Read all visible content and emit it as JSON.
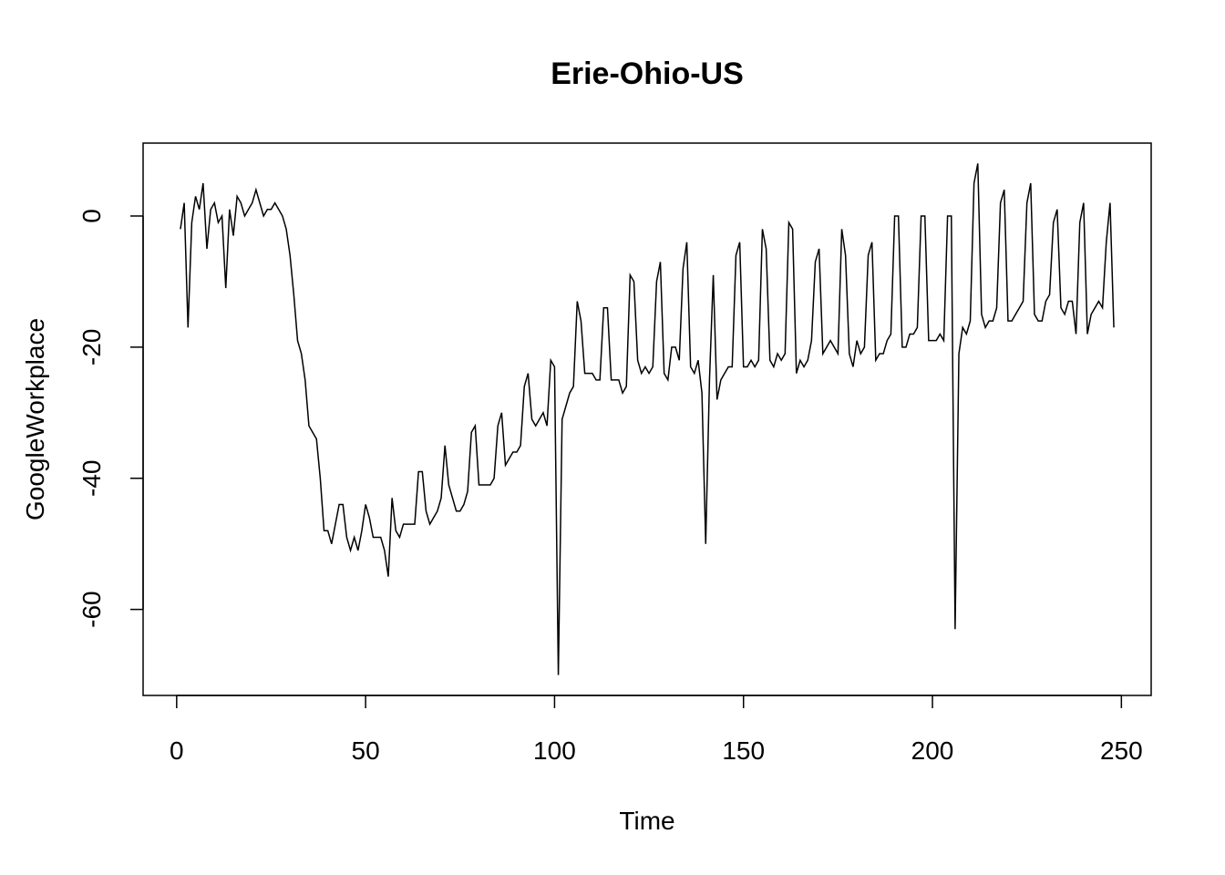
{
  "chart_data": {
    "type": "line",
    "title": "Erie-Ohio-US",
    "xlabel": "Time",
    "ylabel": "GoogleWorkplace",
    "color": "#000000",
    "x": [
      1,
      2,
      3,
      4,
      5,
      6,
      7,
      8,
      9,
      10,
      11,
      12,
      13,
      14,
      15,
      16,
      17,
      18,
      19,
      20,
      21,
      22,
      23,
      24,
      25,
      26,
      27,
      28,
      29,
      30,
      31,
      32,
      33,
      34,
      35,
      36,
      37,
      38,
      39,
      40,
      41,
      42,
      43,
      44,
      45,
      46,
      47,
      48,
      49,
      50,
      51,
      52,
      53,
      54,
      55,
      56,
      57,
      58,
      59,
      60,
      61,
      62,
      63,
      64,
      65,
      66,
      67,
      68,
      69,
      70,
      71,
      72,
      73,
      74,
      75,
      76,
      77,
      78,
      79,
      80,
      81,
      82,
      83,
      84,
      85,
      86,
      87,
      88,
      89,
      90,
      91,
      92,
      93,
      94,
      95,
      96,
      97,
      98,
      99,
      100,
      101,
      102,
      103,
      104,
      105,
      106,
      107,
      108,
      109,
      110,
      111,
      112,
      113,
      114,
      115,
      116,
      117,
      118,
      119,
      120,
      121,
      122,
      123,
      124,
      125,
      126,
      127,
      128,
      129,
      130,
      131,
      132,
      133,
      134,
      135,
      136,
      137,
      138,
      139,
      140,
      141,
      142,
      143,
      144,
      145,
      146,
      147,
      148,
      149,
      150,
      151,
      152,
      153,
      154,
      155,
      156,
      157,
      158,
      159,
      160,
      161,
      162,
      163,
      164,
      165,
      166,
      167,
      168,
      169,
      170,
      171,
      172,
      173,
      174,
      175,
      176,
      177,
      178,
      179,
      180,
      181,
      182,
      183,
      184,
      185,
      186,
      187,
      188,
      189,
      190,
      191,
      192,
      193,
      194,
      195,
      196,
      197,
      198,
      199,
      200,
      201,
      202,
      203,
      204,
      205,
      206,
      207,
      208,
      209,
      210,
      211,
      212,
      213,
      214,
      215,
      216,
      217,
      218,
      219,
      220,
      221,
      222,
      223,
      224,
      225,
      226,
      227,
      228,
      229,
      230,
      231,
      232,
      233,
      234,
      235,
      236,
      237,
      238,
      239,
      240,
      241,
      242,
      243,
      244,
      245,
      246,
      247,
      248
    ],
    "values": [
      -2,
      2,
      -17,
      -1,
      3,
      1,
      5,
      -5,
      1,
      2,
      -1,
      0,
      -11,
      1,
      -3,
      3,
      2,
      0,
      1,
      2,
      4,
      2,
      0,
      1,
      1,
      2,
      1,
      0,
      -2,
      -6,
      -12,
      -19,
      -21,
      -25,
      -32,
      -33,
      -34,
      -40,
      -48,
      -48,
      -50,
      -47,
      -44,
      -44,
      -49,
      -51,
      -49,
      -51,
      -48,
      -44,
      -46,
      -49,
      -49,
      -49,
      -51,
      -55,
      -43,
      -48,
      -49,
      -47,
      -47,
      -47,
      -47,
      -39,
      -39,
      -45,
      -47,
      -46,
      -45,
      -43,
      -35,
      -41,
      -43,
      -45,
      -45,
      -44,
      -42,
      -33,
      -32,
      -41,
      -41,
      -41,
      -41,
      -40,
      -32,
      -30,
      -38,
      -37,
      -36,
      -36,
      -35,
      -26,
      -24,
      -31,
      -32,
      -31,
      -30,
      -32,
      -22,
      -23,
      -70,
      -31,
      -29,
      -27,
      -26,
      -13,
      -16,
      -24,
      -24,
      -24,
      -25,
      -25,
      -14,
      -14,
      -25,
      -25,
      -25,
      -27,
      -26,
      -9,
      -10,
      -22,
      -24,
      -23,
      -24,
      -23,
      -10,
      -7,
      -24,
      -25,
      -20,
      -20,
      -22,
      -8,
      -4,
      -23,
      -24,
      -22,
      -27,
      -50,
      -25,
      -9,
      -28,
      -25,
      -24,
      -23,
      -23,
      -6,
      -4,
      -23,
      -23,
      -22,
      -23,
      -22,
      -2,
      -5,
      -22,
      -23,
      -21,
      -22,
      -21,
      -1,
      -2,
      -24,
      -22,
      -23,
      -22,
      -19,
      -7,
      -5,
      -21,
      -20,
      -19,
      -20,
      -21,
      -2,
      -6,
      -21,
      -23,
      -19,
      -21,
      -20,
      -6,
      -4,
      -22,
      -21,
      -21,
      -19,
      -18,
      0,
      0,
      -20,
      -20,
      -18,
      -18,
      -17,
      0,
      0,
      -19,
      -19,
      -19,
      -18,
      -19,
      0,
      0,
      -63,
      -21,
      -17,
      -18,
      -16,
      5,
      8,
      -15,
      -17,
      -16,
      -16,
      -14,
      2,
      4,
      -16,
      -16,
      -15,
      -14,
      -13,
      2,
      5,
      -15,
      -16,
      -16,
      -13,
      -12,
      -1,
      1,
      -14,
      -15,
      -13,
      -13,
      -18,
      -1,
      2,
      -18,
      -15,
      -14,
      -13,
      -14,
      -4,
      2,
      -17
    ],
    "xlim": [
      -8.88,
      257.88
    ],
    "ylim": [
      -73.12,
      11.12
    ],
    "xticks": [
      0,
      50,
      100,
      150,
      200,
      250
    ],
    "yticks": [
      -60,
      -40,
      -20,
      0
    ]
  }
}
